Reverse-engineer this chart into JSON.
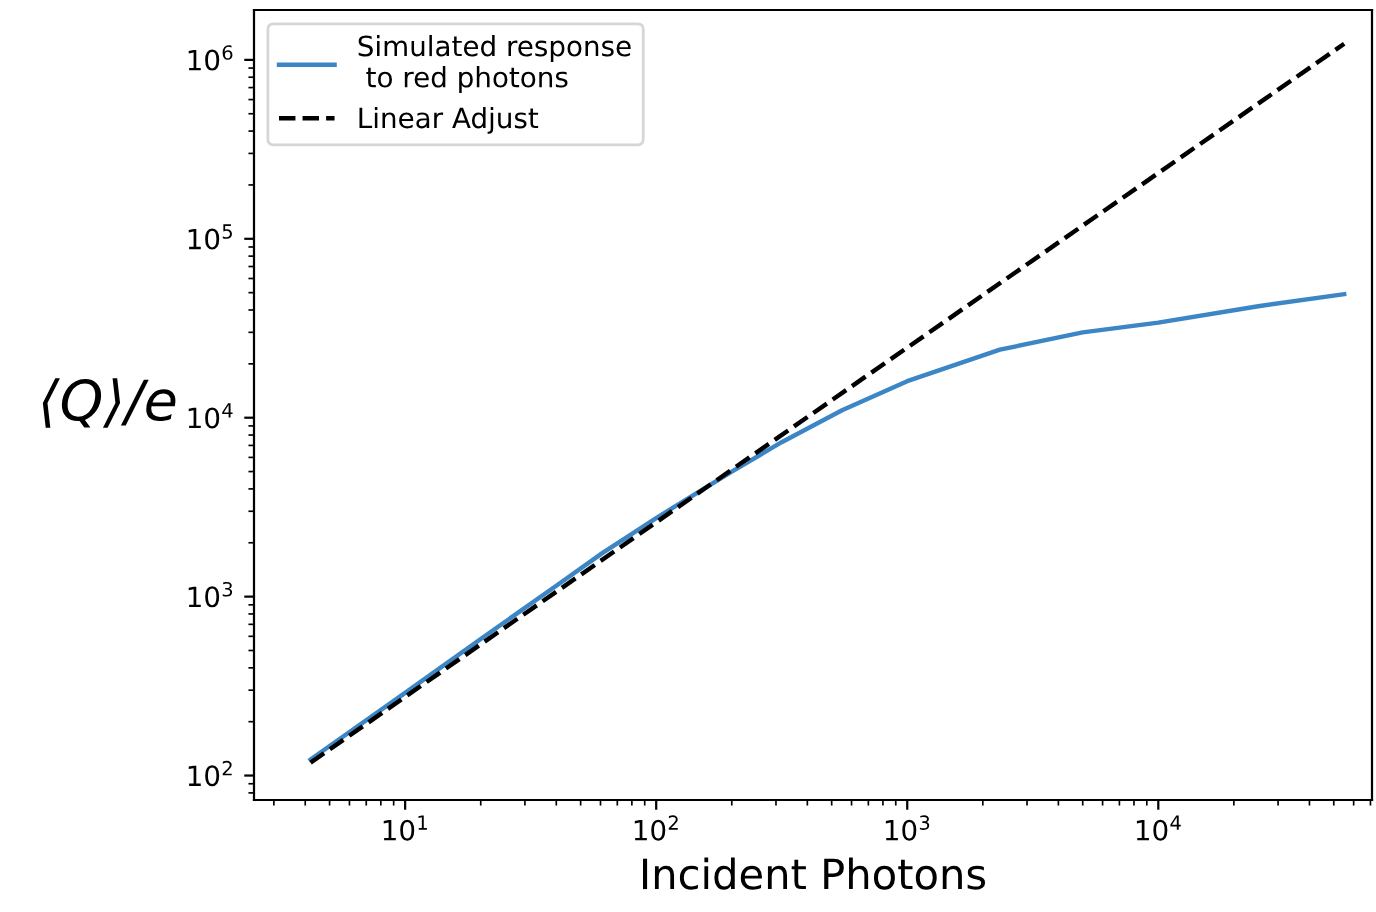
{
  "chart_data": {
    "type": "line",
    "xlabel": "Incident Photons",
    "ylabel": "⟨Q⟩/e",
    "log": "xy",
    "legend": "top left",
    "grid": false,
    "xlim": [
      2.5,
      71000
    ],
    "ylim": [
      73,
      1900000
    ],
    "xticks": [
      {
        "value": 10,
        "label": "10$^{1}$"
      },
      {
        "value": 100,
        "label": "10$^{2}$"
      },
      {
        "value": 1000,
        "label": "10$^{3}$"
      },
      {
        "value": 10000,
        "label": "10$^{4}$"
      }
    ],
    "yticks": [
      {
        "value": 100,
        "label": "10$^{2}$"
      },
      {
        "value": 1000,
        "label": "10$^{3}$"
      },
      {
        "value": 10000,
        "label": "10$^{4}$"
      },
      {
        "value": 100000,
        "label": "10$^{5}$"
      },
      {
        "value": 1000000,
        "label": "10$^{6}$"
      }
    ],
    "series": [
      {
        "name": "Simulated response\n to red photons",
        "color": "#3c86c6",
        "line_style": "solid",
        "x": [
          4.2,
          10,
          20,
          40,
          61,
          100,
          200,
          316,
          550,
          1000,
          2340,
          5000,
          10000,
          25000,
          55000
        ],
        "values": [
          123,
          290,
          580,
          1150,
          1750,
          2750,
          5000,
          7300,
          11000,
          16000,
          24000,
          30000,
          34000,
          42000,
          49000
        ]
      },
      {
        "name": "Linear Adjust",
        "color": "#000000",
        "line_style": "dashed",
        "x": [
          4.2,
          55000
        ],
        "values": [
          118,
          1230000
        ]
      }
    ]
  }
}
